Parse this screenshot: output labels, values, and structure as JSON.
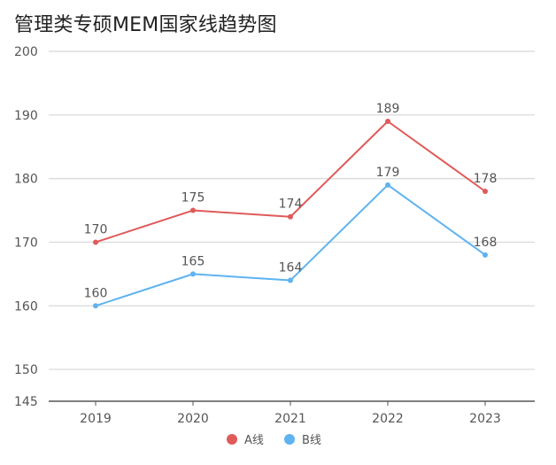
{
  "chart_data": {
    "type": "line",
    "title": "管理类专硕MEM国家线趋势图",
    "categories": [
      "2019",
      "2020",
      "2021",
      "2022",
      "2023"
    ],
    "series": [
      {
        "name": "A线",
        "values": [
          170,
          175,
          174,
          189,
          178
        ],
        "color": "#e05a5a"
      },
      {
        "name": "B线",
        "values": [
          160,
          165,
          164,
          179,
          168
        ],
        "color": "#5eb3f0"
      }
    ],
    "y_ticks": [
      145,
      150,
      160,
      170,
      180,
      190,
      200
    ],
    "ylim": [
      145,
      200
    ],
    "grid": true,
    "legend_position": "bottom-center"
  }
}
